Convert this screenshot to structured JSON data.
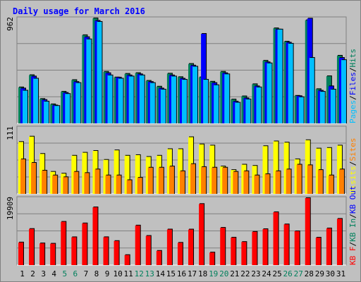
{
  "chart_data": [
    {
      "type": "bar",
      "title": "Daily usage for March 2016",
      "categories": [
        "1",
        "2",
        "3",
        "4",
        "5",
        "6",
        "7",
        "8",
        "9",
        "10",
        "11",
        "12",
        "13",
        "14",
        "15",
        "16",
        "17",
        "18",
        "19",
        "20",
        "21",
        "22",
        "23",
        "24",
        "25",
        "26",
        "27",
        "28",
        "29",
        "30",
        "31"
      ],
      "weekend_days": [
        "5",
        "6",
        "12",
        "13",
        "19",
        "20",
        "26",
        "27"
      ],
      "ymax_label": "962",
      "ylim": [
        0,
        962
      ],
      "ylabel_parts": [
        "Pages",
        "/",
        "Files",
        "/",
        "Hits"
      ],
      "series": [
        {
          "name": "Hits",
          "color": "#00805c",
          "values": [
            330,
            442,
            224,
            175,
            290,
            397,
            808,
            962,
            473,
            421,
            454,
            461,
            390,
            337,
            456,
            424,
            545,
            422,
            382,
            473,
            219,
            248,
            359,
            574,
            871,
            749,
            253,
            944,
            314,
            432,
            620
          ]
        },
        {
          "name": "Files",
          "color": "#0000ff",
          "values": [
            320,
            430,
            215,
            165,
            280,
            380,
            790,
            940,
            460,
            420,
            440,
            450,
            380,
            320,
            440,
            410,
            530,
            820,
            370,
            460,
            200,
            230,
            340,
            560,
            860,
            740,
            250,
            960,
            300,
            340,
            600
          ]
        },
        {
          "name": "Pages",
          "color": "#00bfff",
          "values": [
            300,
            410,
            200,
            160,
            270,
            370,
            770,
            930,
            440,
            410,
            430,
            440,
            370,
            310,
            430,
            400,
            520,
            400,
            350,
            450,
            190,
            220,
            330,
            550,
            860,
            730,
            240,
            600,
            290,
            310,
            580
          ]
        }
      ]
    },
    {
      "type": "bar",
      "ymax_label": "111",
      "ylim": [
        0,
        111
      ],
      "ylabel_parts": [
        "Visits",
        "/",
        "Sites"
      ],
      "series": [
        {
          "name": "Visits",
          "color": "#ffff00",
          "values": [
            87,
            96,
            67,
            37,
            34,
            64,
            69,
            72,
            57,
            73,
            64,
            65,
            62,
            64,
            75,
            75,
            95,
            83,
            81,
            46,
            40,
            49,
            47,
            80,
            88,
            86,
            58,
            90,
            76,
            77,
            81
          ]
        },
        {
          "name": "Sites",
          "color": "#ff8000",
          "values": [
            58,
            52,
            39,
            31,
            28,
            37,
            35,
            41,
            31,
            31,
            23,
            27,
            44,
            44,
            46,
            38,
            50,
            45,
            44,
            44,
            37,
            38,
            31,
            33,
            38,
            41,
            49,
            48,
            40,
            31,
            41
          ]
        }
      ]
    },
    {
      "type": "bar",
      "ymax_label": "19909",
      "ylim": [
        0,
        19909
      ],
      "ylabel_parts": [
        "KB F",
        "/",
        "KB In",
        "/",
        "KB Out"
      ],
      "series": [
        {
          "name": "KB F",
          "color": "#ff0000",
          "values": [
            6730,
            10750,
            6460,
            6370,
            12870,
            8290,
            12410,
            17180,
            8300,
            7170,
            2990,
            11770,
            8690,
            4240,
            10590,
            6640,
            10580,
            18170,
            3740,
            11090,
            8170,
            6880,
            9890,
            10690,
            15730,
            12110,
            10060,
            19909,
            8170,
            10910,
            13760
          ]
        }
      ]
    }
  ],
  "colors": {
    "frame_bg": "#c0c0c0",
    "title": "#0000ff",
    "weekday_label": "#000000",
    "weekend_label": "#00805c",
    "kb_in": "#00805c",
    "kb_out": "#0000ff",
    "shadow": "#000000",
    "gridline": "#808080"
  }
}
